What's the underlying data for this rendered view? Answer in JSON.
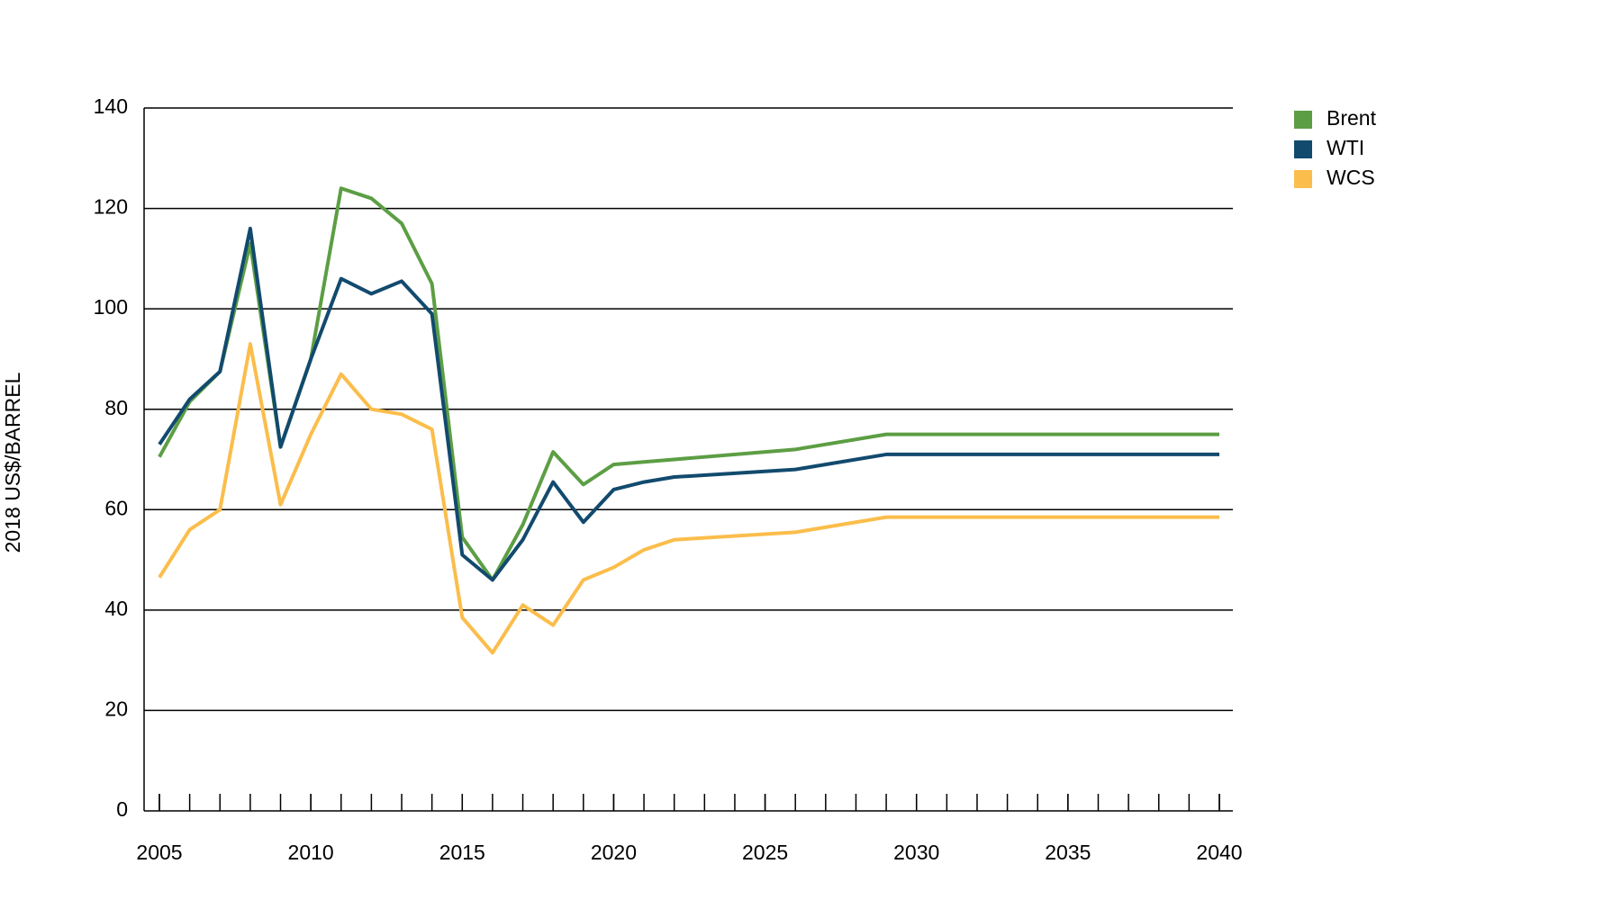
{
  "chart_data": {
    "type": "line",
    "y_label": "2018 US$/BARREL",
    "x": [
      2005,
      2006,
      2007,
      2008,
      2009,
      2010,
      2011,
      2012,
      2013,
      2014,
      2015,
      2016,
      2017,
      2018,
      2019,
      2020,
      2021,
      2022,
      2026,
      2029,
      2040
    ],
    "series": [
      {
        "name": "Brent",
        "color": "#5c9e44",
        "values": [
          70.5,
          81.5,
          87.5,
          113,
          72.5,
          90,
          124,
          122,
          117,
          105,
          54.5,
          46,
          57,
          71.5,
          65,
          69,
          69.5,
          70,
          72,
          75,
          75
        ]
      },
      {
        "name": "WTI",
        "color": "#124a6e",
        "values": [
          73,
          82,
          87.5,
          116,
          72.5,
          90,
          106,
          103,
          105.5,
          99,
          51,
          46,
          54,
          65.5,
          57.5,
          64,
          65.5,
          66.5,
          68,
          71,
          71
        ]
      },
      {
        "name": "WCS",
        "color": "#fbbd4b",
        "values": [
          46.5,
          56,
          60,
          93,
          61,
          75,
          87,
          80,
          79,
          76,
          38.5,
          31.5,
          41,
          37,
          46,
          48.5,
          52,
          54,
          55.5,
          58.5,
          58.5
        ]
      }
    ],
    "xlim": [
      2005,
      2040
    ],
    "xticks": [
      2005,
      2010,
      2015,
      2020,
      2025,
      2030,
      2035,
      2040
    ],
    "ylim": [
      0,
      140
    ],
    "yticks": [
      0,
      20,
      40,
      60,
      80,
      100,
      120,
      140
    ],
    "grid": true,
    "legend": "right"
  }
}
